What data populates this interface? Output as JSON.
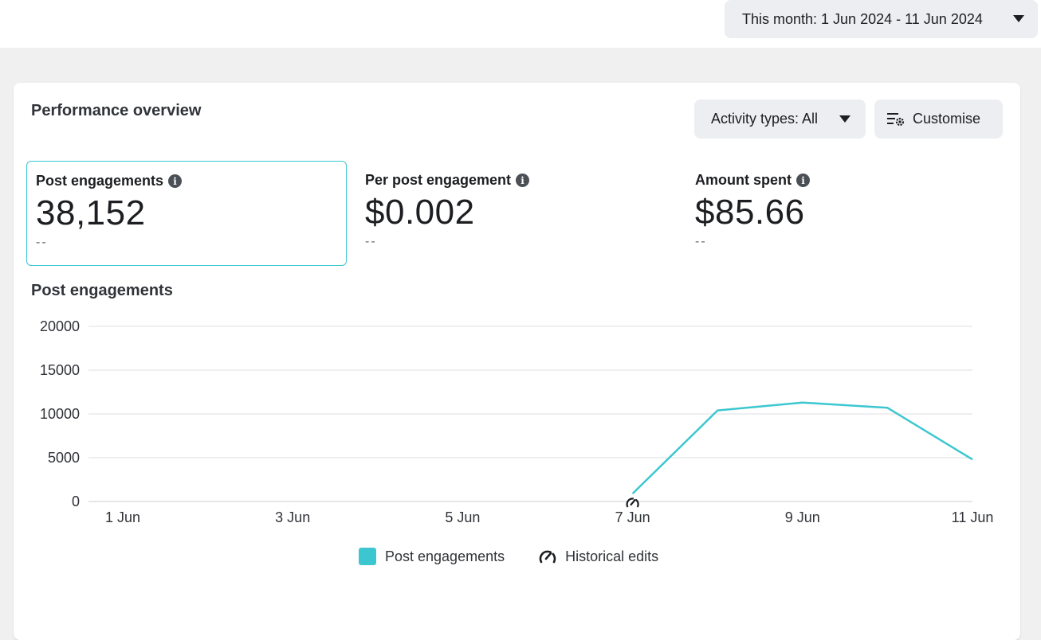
{
  "date_range": {
    "label": "This month: 1 Jun 2024 - 11 Jun 2024"
  },
  "overview": {
    "title": "Performance overview",
    "activity_filter": "Activity types: All",
    "customise_label": "Customise"
  },
  "metrics": [
    {
      "label": "Post engagements",
      "value": "38,152",
      "delta": "--"
    },
    {
      "label": "Per post engagement",
      "value": "$0.002",
      "delta": "--"
    },
    {
      "label": "Amount spent",
      "value": "$85.66",
      "delta": "--"
    }
  ],
  "chart_title": "Post engagements",
  "colors": {
    "accent": "#3cc7d0",
    "grid": "#dddfe2"
  },
  "chart_data": {
    "type": "line",
    "x": [
      "1 Jun",
      "2 Jun",
      "3 Jun",
      "4 Jun",
      "5 Jun",
      "6 Jun",
      "7 Jun",
      "8 Jun",
      "9 Jun",
      "10 Jun",
      "11 Jun"
    ],
    "x_tick_labels": [
      "1 Jun",
      "3 Jun",
      "5 Jun",
      "7 Jun",
      "9 Jun",
      "11 Jun"
    ],
    "y_tick_labels": [
      "0",
      "5000",
      "10000",
      "15000",
      "20000"
    ],
    "ylim": [
      0,
      20000
    ],
    "series": [
      {
        "name": "Post engagements",
        "values": [
          null,
          null,
          null,
          null,
          null,
          null,
          900,
          10400,
          11300,
          10700,
          4800
        ],
        "color": "#3cc7d0"
      }
    ],
    "annotations": [
      {
        "label": "Historical edits",
        "x": "7 Jun",
        "icon": "gauge-icon"
      }
    ],
    "legend": [
      "Post engagements",
      "Historical edits"
    ],
    "grid": true
  }
}
